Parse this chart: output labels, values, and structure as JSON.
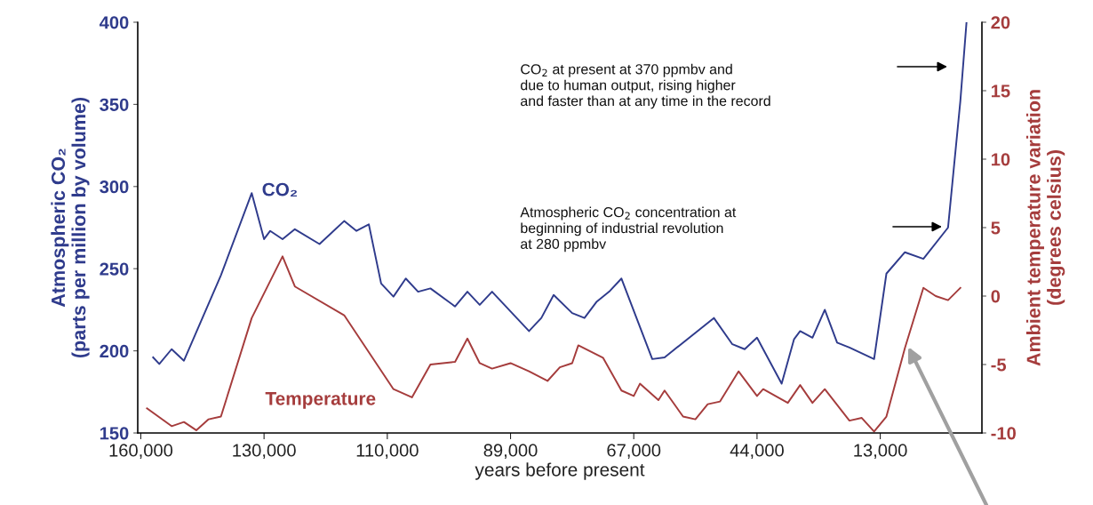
{
  "chart_data": {
    "type": "line",
    "xlabel": "years before present",
    "ylabel": "Atmospheric CO₂\n(parts per million by volume)",
    "y2label": "Ambient temperature variation\n(degrees celsius)",
    "categories": [
      "160,000",
      null,
      null,
      null,
      null,
      null,
      null,
      null,
      null,
      null,
      null,
      null,
      null,
      null,
      null,
      null,
      null,
      null,
      null,
      null,
      "130,000",
      null,
      null,
      null,
      null,
      null,
      null,
      null,
      null,
      null,
      null,
      null,
      null,
      null,
      null,
      null,
      null,
      null,
      null,
      null,
      "110,000",
      null,
      null,
      null,
      null,
      null,
      null,
      null,
      null,
      null,
      null,
      null,
      null,
      null,
      null,
      null,
      null,
      null,
      null,
      null,
      "89,000",
      null,
      null,
      null,
      null,
      null,
      null,
      null,
      null,
      null,
      null,
      null,
      null,
      null,
      null,
      null,
      null,
      null,
      null,
      null,
      "67,000",
      null,
      null,
      null,
      null,
      null,
      null,
      null,
      null,
      null,
      null,
      null,
      null,
      null,
      null,
      null,
      null,
      null,
      null,
      null,
      "44,000",
      null,
      null,
      null,
      null,
      null,
      null,
      null,
      null,
      null,
      null,
      null,
      null,
      null,
      null,
      null,
      null,
      null,
      null,
      null,
      "13,000",
      null,
      null,
      null,
      null,
      null,
      null,
      null,
      null,
      null,
      null,
      null,
      null,
      null,
      null,
      null,
      null
    ],
    "ylim": [
      150,
      400
    ],
    "yticks": [
      150,
      200,
      250,
      300,
      350,
      400
    ],
    "y2lim": [
      -10,
      20
    ],
    "y2ticks": [
      -10,
      -5,
      0,
      5,
      10,
      15,
      20
    ],
    "series": [
      {
        "name": "CO₂",
        "color": "#2f3b8c",
        "values": [
          null,
          null,
          196,
          192,
          null,
          201,
          null,
          194,
          null,
          null,
          null,
          null,
          null,
          246,
          null,
          null,
          null,
          null,
          296,
          null,
          268,
          273,
          null,
          268,
          null,
          274,
          null,
          null,
          null,
          265,
          null,
          null,
          null,
          279,
          null,
          273,
          null,
          277,
          null,
          241,
          null,
          233,
          null,
          244,
          null,
          236,
          null,
          238,
          null,
          null,
          null,
          227,
          null,
          236,
          null,
          228,
          null,
          236,
          null,
          null,
          null,
          null,
          null,
          212,
          null,
          220,
          null,
          234,
          null,
          null,
          223,
          null,
          220,
          null,
          230,
          null,
          236,
          null,
          244,
          null,
          null,
          null,
          null,
          195,
          null,
          196,
          null,
          null,
          null,
          null,
          null,
          null,
          null,
          220,
          null,
          null,
          204,
          null,
          201,
          null,
          208,
          201,
          null,
          null,
          180,
          null,
          207,
          212,
          null,
          208,
          null,
          225,
          null,
          205,
          null,
          202,
          null,
          null,
          null,
          195,
          null,
          247,
          null,
          null,
          260,
          null,
          null,
          256,
          null,
          null,
          null,
          275,
          null,
          352,
          400,
          null,
          null
        ]
      },
      {
        "name": "Temperature",
        "color": "#a53c3c",
        "axis": "y2",
        "values": [
          null,
          -8.2,
          null,
          null,
          null,
          -9.5,
          null,
          -9.2,
          null,
          -9.8,
          null,
          -9.0,
          null,
          -8.8,
          null,
          null,
          null,
          null,
          -1.6,
          null,
          null,
          null,
          null,
          2.9,
          null,
          0.7,
          null,
          null,
          null,
          null,
          null,
          null,
          null,
          -1.4,
          null,
          null,
          null,
          null,
          null,
          null,
          null,
          -6.8,
          null,
          null,
          -7.4,
          null,
          null,
          -5.0,
          null,
          null,
          null,
          -4.8,
          null,
          -3.1,
          null,
          -4.9,
          null,
          -5.3,
          null,
          null,
          -4.9,
          null,
          null,
          -5.5,
          null,
          null,
          -6.2,
          null,
          -5.2,
          null,
          -4.9,
          -3.6,
          null,
          null,
          null,
          -4.5,
          null,
          null,
          -6.9,
          null,
          -7.3,
          -6.4,
          null,
          null,
          -7.6,
          -6.9,
          null,
          null,
          -8.8,
          null,
          -9.0,
          null,
          -7.9,
          null,
          -7.7,
          null,
          null,
          -5.5,
          null,
          null,
          -7.3,
          -6.8,
          null,
          null,
          null,
          -7.8,
          null,
          -6.5,
          null,
          -7.8,
          null,
          -6.8,
          null,
          null,
          null,
          -9.1,
          null,
          -8.9,
          null,
          -9.9,
          null,
          -8.8,
          null,
          null,
          -3.8,
          null,
          null,
          0.6,
          null,
          0.0,
          null,
          -0.3,
          null,
          0.6,
          null,
          null,
          null
        ]
      }
    ],
    "annotations": [
      "CO$_{2}$ at present at 370 ppmbv and\ndue to human output, rising higher\nand faster than at any time in the record",
      "Atmospheric CO$_{2}$ concentration at\nbeginning of industrial revolution\nat 280 ppmbv"
    ]
  }
}
